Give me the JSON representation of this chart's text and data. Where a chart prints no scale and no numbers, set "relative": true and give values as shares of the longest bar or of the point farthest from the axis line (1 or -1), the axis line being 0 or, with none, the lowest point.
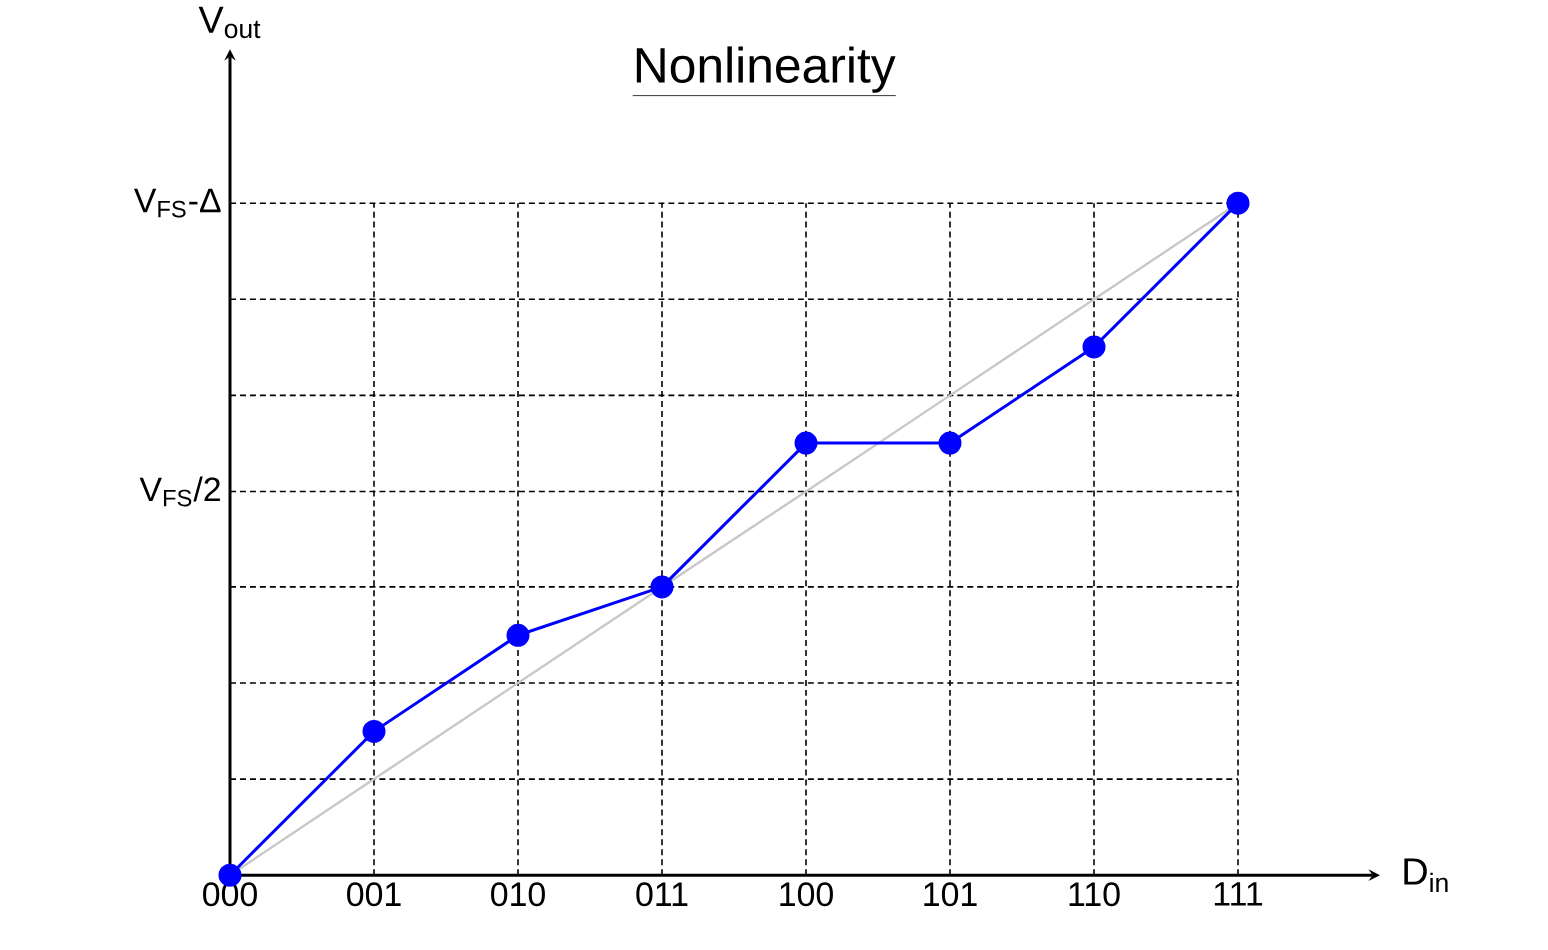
{
  "chart_data": {
    "type": "line",
    "title": "Nonlinearity",
    "xlabel": "D$_{in}$",
    "ylabel": "V$_{out}$",
    "categories": [
      "000",
      "001",
      "010",
      "011",
      "100",
      "101",
      "110",
      "111"
    ],
    "series": [
      {
        "color": "#c8c8c8",
        "marker": "none",
        "values": [
          0,
          0.143,
          0.286,
          0.429,
          0.571,
          0.714,
          0.857,
          1
        ]
      },
      {
        "color": "#0000ff",
        "marker": "circle",
        "values": [
          0,
          0.214,
          0.357,
          0.429,
          0.643,
          0.643,
          0.786,
          1
        ]
      }
    ],
    "relative": true,
    "annotations": [
      "V$_{FS}$/2",
      "V$_{FS}$-Δ"
    ],
    "grid": true,
    "line_style": "solid"
  }
}
